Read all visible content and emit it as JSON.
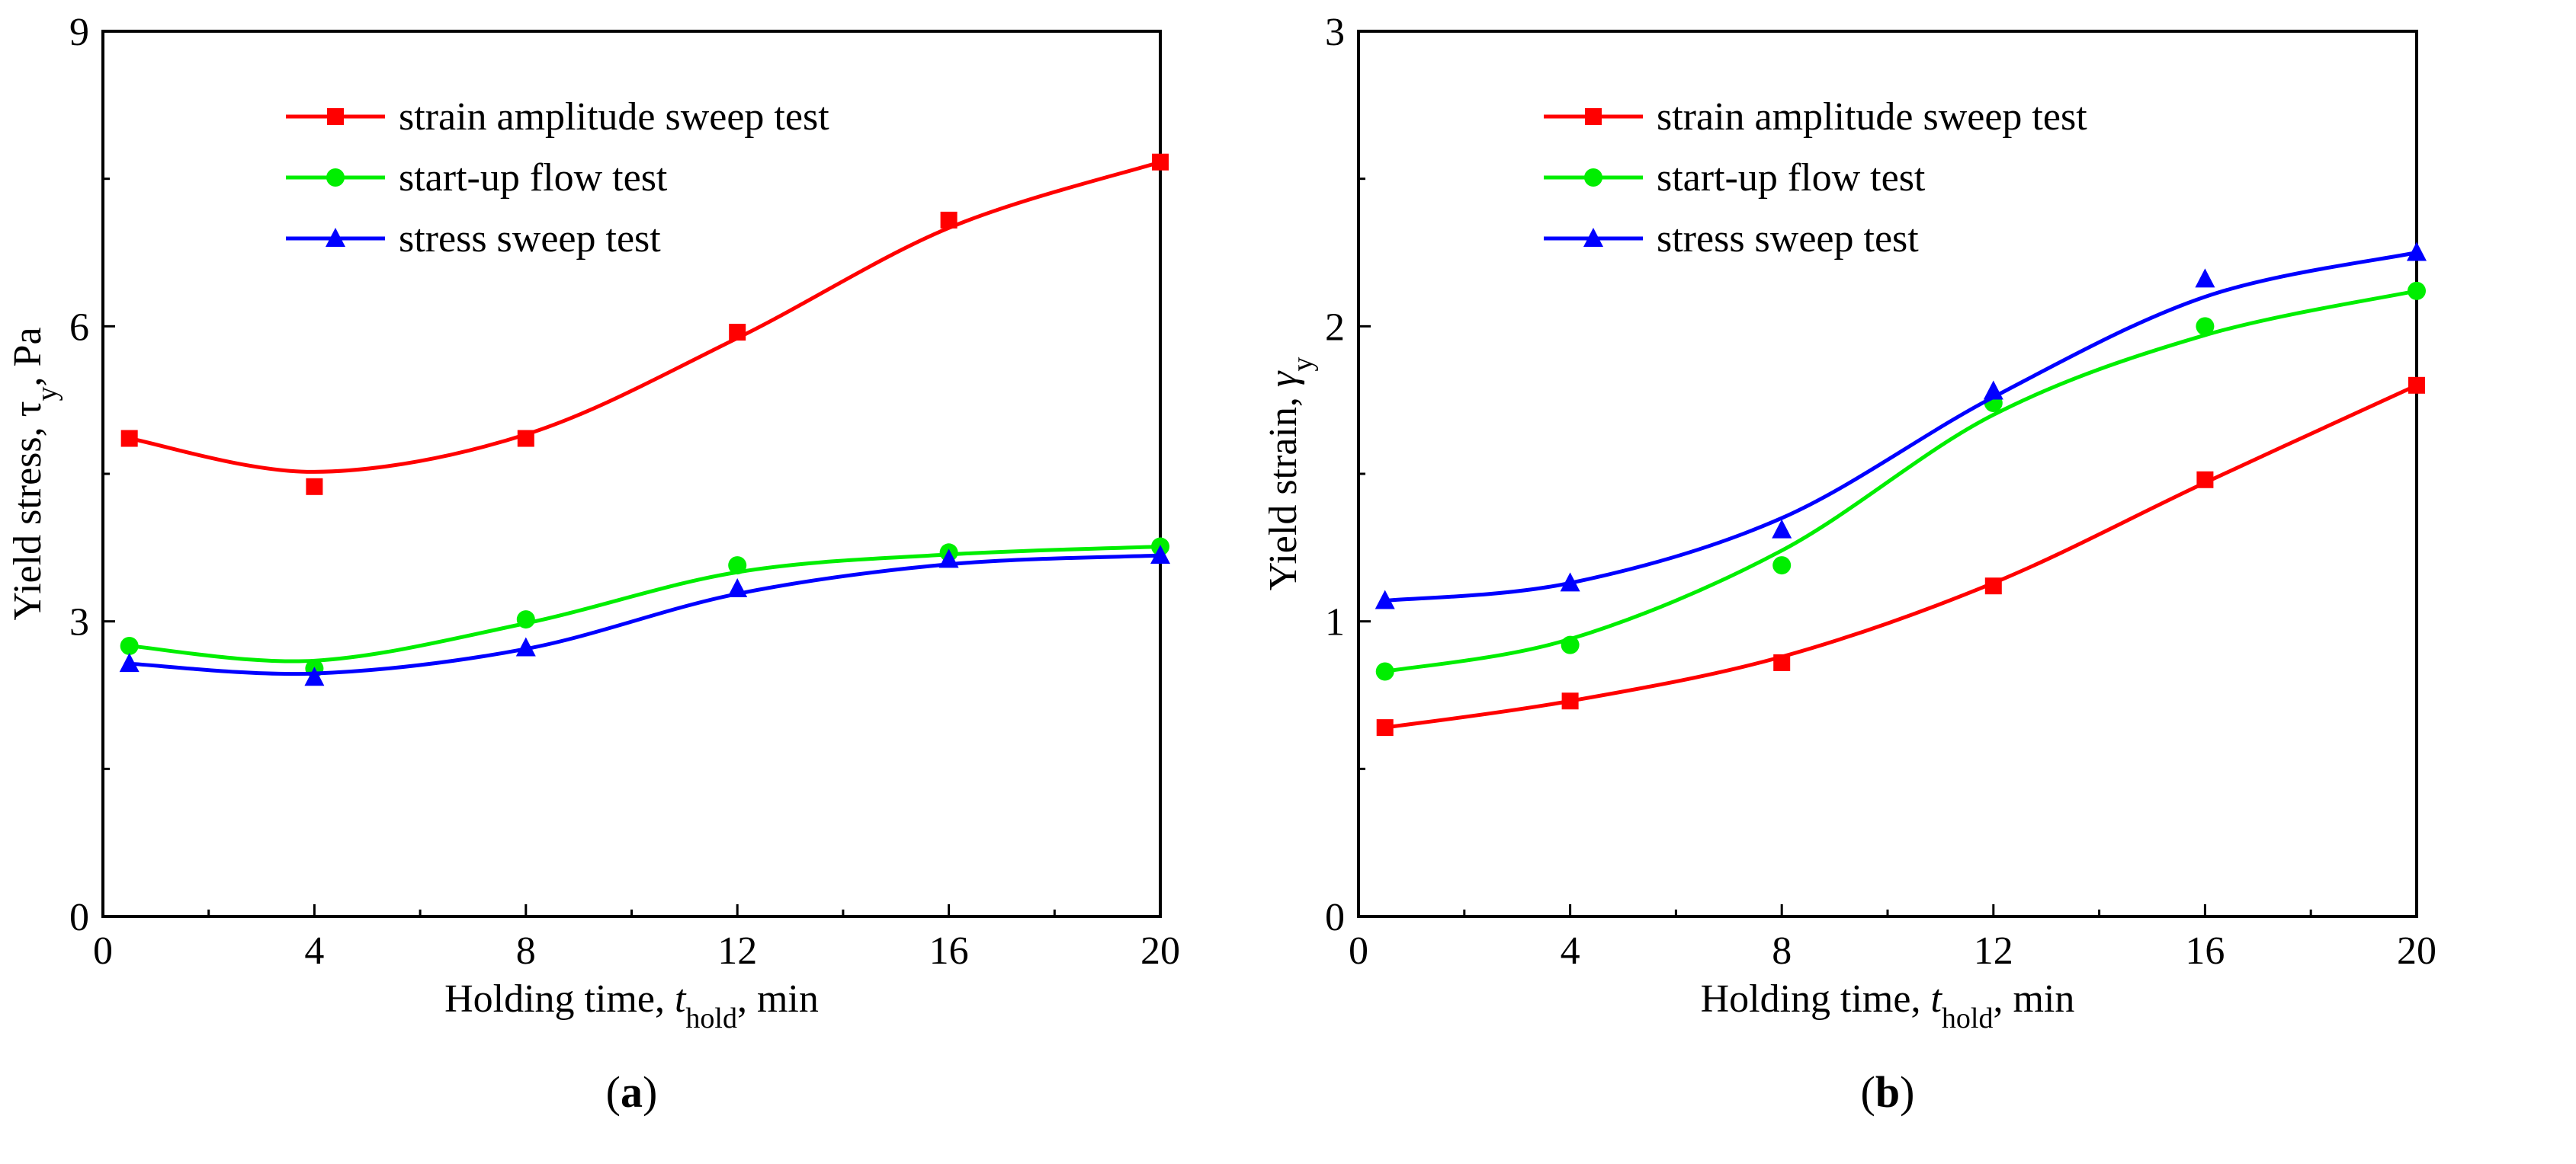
{
  "chart_data": [
    {
      "type": "line",
      "panel_label": "a",
      "xlabel": {
        "pre": "Holding time, ",
        "italic": "t",
        "sub": "hold",
        "post": ", min"
      },
      "ylabel": {
        "pre": "Yield stress, ",
        "symbol": "τ",
        "sub": "y",
        "post": ", Pa"
      },
      "xlim": [
        0,
        20
      ],
      "ylim": [
        0,
        9
      ],
      "xticks": [
        0,
        4,
        8,
        12,
        16,
        20
      ],
      "yticks": [
        0,
        3,
        6,
        9
      ],
      "x": [
        0.5,
        4,
        8,
        12,
        16,
        20
      ],
      "legend_position": "top-center",
      "series": [
        {
          "name": "strain amplitude sweep test",
          "color": "#ff0000",
          "marker": "square",
          "values": [
            4.86,
            4.37,
            4.86,
            5.94,
            7.08,
            7.67
          ],
          "fit": [
            4.86,
            4.52,
            4.9,
            5.88,
            7.0,
            7.67
          ]
        },
        {
          "name": "start-up flow test",
          "color": "#00ee00",
          "marker": "circle",
          "values": [
            2.75,
            2.52,
            3.02,
            3.57,
            3.7,
            3.76
          ],
          "fit": [
            2.75,
            2.6,
            2.98,
            3.5,
            3.68,
            3.76
          ]
        },
        {
          "name": "stress sweep test",
          "color": "#0000ff",
          "marker": "triangle",
          "values": [
            2.57,
            2.43,
            2.73,
            3.33,
            3.63,
            3.67
          ],
          "fit": [
            2.57,
            2.47,
            2.72,
            3.28,
            3.58,
            3.67
          ]
        }
      ]
    },
    {
      "type": "line",
      "panel_label": "b",
      "xlabel": {
        "pre": "Holding time, ",
        "italic": "t",
        "sub": "hold",
        "post": ", min"
      },
      "ylabel": {
        "pre": "Yield strain, ",
        "symbol": "γ",
        "sub": "y",
        "post": ""
      },
      "xlim": [
        0,
        20
      ],
      "ylim": [
        0,
        3
      ],
      "xticks": [
        0,
        4,
        8,
        12,
        16,
        20
      ],
      "yticks": [
        0,
        1,
        2,
        3
      ],
      "x": [
        0.5,
        4,
        8,
        12,
        16,
        20
      ],
      "legend_position": "top-center",
      "series": [
        {
          "name": "strain amplitude sweep test",
          "color": "#ff0000",
          "marker": "square",
          "values": [
            0.64,
            0.73,
            0.86,
            1.12,
            1.48,
            1.8
          ],
          "fit": [
            0.64,
            0.73,
            0.88,
            1.13,
            1.47,
            1.8
          ]
        },
        {
          "name": "start-up flow test",
          "color": "#00ee00",
          "marker": "circle",
          "values": [
            0.83,
            0.92,
            1.19,
            1.74,
            2.0,
            2.12
          ],
          "fit": [
            0.83,
            0.94,
            1.24,
            1.7,
            1.97,
            2.12
          ]
        },
        {
          "name": "stress sweep test",
          "color": "#0000ff",
          "marker": "triangle",
          "values": [
            1.07,
            1.13,
            1.31,
            1.78,
            2.16,
            2.25
          ],
          "fit": [
            1.07,
            1.13,
            1.35,
            1.76,
            2.1,
            2.25
          ]
        }
      ]
    }
  ]
}
